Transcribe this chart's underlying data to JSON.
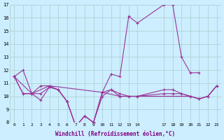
{
  "xlabel": "Windchill (Refroidissement éolien,°C)",
  "background_color": "#cceeff",
  "grid_color": "#aacccc",
  "line_color": "#993399",
  "xlim": [
    -0.5,
    23.5
  ],
  "ylim": [
    8,
    17
  ],
  "yticks": [
    8,
    9,
    10,
    11,
    12,
    13,
    14,
    15,
    16,
    17
  ],
  "xtick_positions": [
    0,
    1,
    2,
    3,
    4,
    5,
    6,
    7,
    8,
    9,
    10,
    11,
    12,
    13,
    14,
    17,
    18,
    19,
    20,
    21,
    22,
    23
  ],
  "xtick_labels": [
    "0",
    "1",
    "2",
    "3",
    "4",
    "5",
    "6",
    "7",
    "8",
    "9",
    "10",
    "11",
    "12",
    "13",
    "14",
    "17",
    "18",
    "19",
    "20",
    "21",
    "22",
    "23"
  ],
  "s1_x": [
    0,
    1,
    2,
    3,
    4,
    5,
    6,
    7,
    8,
    9,
    10,
    11,
    12,
    13,
    14,
    17,
    18,
    19,
    20,
    21
  ],
  "s1_y": [
    11.5,
    12.0,
    10.2,
    10.2,
    10.7,
    10.5,
    9.6,
    7.7,
    8.5,
    8.0,
    10.3,
    11.7,
    11.5,
    16.1,
    15.6,
    17.0,
    17.0,
    13.0,
    11.8,
    11.8
  ],
  "s2_x": [
    0,
    2,
    4,
    10,
    12,
    14,
    20,
    21,
    22,
    23
  ],
  "s2_y": [
    11.5,
    10.2,
    10.8,
    10.3,
    10.0,
    10.0,
    10.0,
    9.8,
    10.0,
    10.8
  ],
  "s3_x": [
    0,
    1,
    2,
    3,
    4,
    5,
    6,
    7,
    8,
    9,
    10,
    11,
    12,
    13,
    14,
    17,
    18,
    19,
    20,
    21,
    22,
    23
  ],
  "s3_y": [
    11.5,
    10.2,
    10.2,
    9.7,
    10.7,
    10.5,
    9.6,
    7.7,
    8.5,
    8.0,
    10.0,
    10.5,
    10.2,
    10.0,
    10.0,
    10.2,
    10.2,
    10.2,
    10.0,
    9.8,
    10.0,
    10.8
  ],
  "s4_x": [
    0,
    1,
    2,
    3,
    4,
    5,
    6,
    7,
    8,
    9,
    10,
    11,
    12,
    13,
    14,
    17,
    18,
    19,
    20,
    21,
    22,
    23
  ],
  "s4_y": [
    11.5,
    10.2,
    10.2,
    10.8,
    10.8,
    10.5,
    9.6,
    7.7,
    8.5,
    8.0,
    10.3,
    10.5,
    10.0,
    10.0,
    10.0,
    10.5,
    10.5,
    10.2,
    10.0,
    9.8,
    10.0,
    10.8
  ]
}
